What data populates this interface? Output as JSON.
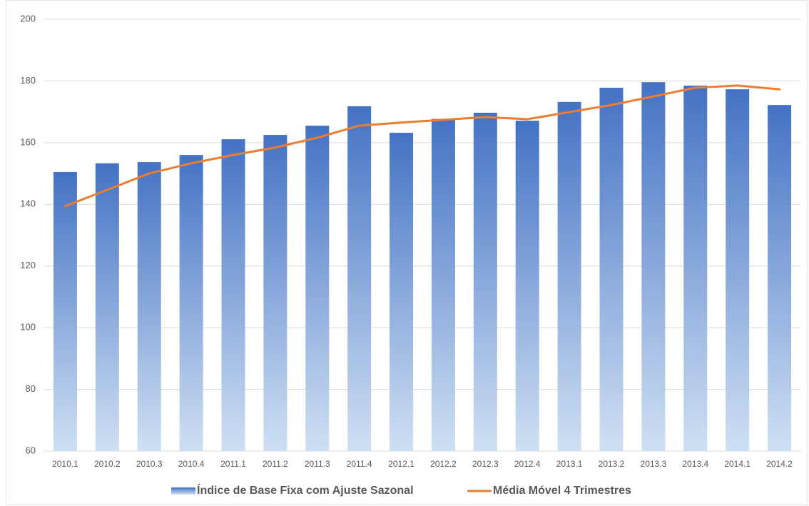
{
  "chart_data": {
    "type": "bar",
    "categories": [
      "2010.1",
      "2010.2",
      "2010.3",
      "2010.4",
      "2011.1",
      "2011.2",
      "2011.3",
      "2011.4",
      "2012.1",
      "2012.2",
      "2012.3",
      "2012.4",
      "2013.1",
      "2013.2",
      "2013.3",
      "2013.4",
      "2014.1",
      "2014.2"
    ],
    "series": [
      {
        "name": "Índice de Base Fixa com Ajuste Sazonal",
        "type": "bar",
        "color": "#4472c4",
        "values": [
          150.5,
          153.3,
          153.7,
          156.0,
          161.1,
          162.5,
          165.5,
          171.8,
          163.2,
          167.7,
          169.7,
          167.1,
          173.2,
          177.8,
          179.6,
          178.5,
          177.3,
          172.2
        ]
      },
      {
        "name": "Média Móvel 4 Trimestres",
        "type": "line",
        "color": "#ed7d31",
        "values": [
          139.4,
          144.7,
          150.0,
          153.3,
          156.0,
          158.4,
          161.6,
          165.5,
          166.5,
          167.4,
          168.3,
          167.6,
          169.9,
          172.2,
          175.0,
          177.8,
          178.5,
          177.3
        ]
      }
    ],
    "ylim": [
      60,
      200
    ],
    "yticks": [
      60,
      80,
      100,
      120,
      140,
      160,
      180,
      200
    ],
    "grid": true
  }
}
